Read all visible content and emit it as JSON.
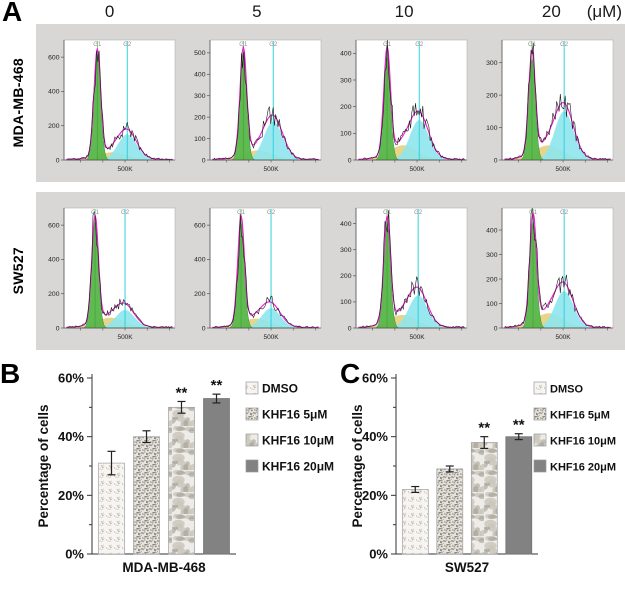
{
  "figure": {
    "panel_a_label": "A",
    "panel_b_label": "B",
    "panel_c_label": "C",
    "concentrations": [
      "0",
      "5",
      "10",
      "20"
    ],
    "concentration_unit": "(μM)"
  },
  "flow": {
    "x_axis_label": "500K",
    "g1_label": "G1",
    "g2_label": "G2",
    "colors": {
      "g1_fill": "#57b649",
      "g1_edge": "#2f7d2f",
      "g2_fill": "#8ee6ee",
      "s_fill": "#e7cf7e",
      "fit_curve": "#f01ad0",
      "g1_line": "#3aa32f",
      "g2_line": "#2fd2dd",
      "trace": "#1a1a1a",
      "panel_bg": "#d8d7d5"
    },
    "rows": [
      {
        "cell_line": "MDA-MB-468",
        "plots": [
          {
            "concentration": "0",
            "y_ticks": [
              0,
              200,
              400,
              600
            ],
            "y_max": 700,
            "g1_x": 0.3,
            "g1_h": 620,
            "g2_x": 0.57,
            "g2_h": 150,
            "s_h": 45,
            "seed": 11
          },
          {
            "concentration": "5",
            "y_ticks": [
              0,
              100,
              200,
              300,
              400,
              500
            ],
            "y_max": 560,
            "g1_x": 0.3,
            "g1_h": 500,
            "g2_x": 0.57,
            "g2_h": 180,
            "s_h": 45,
            "seed": 12
          },
          {
            "concentration": "10",
            "y_ticks": [
              0,
              100,
              200,
              300,
              400
            ],
            "y_max": 450,
            "g1_x": 0.28,
            "g1_h": 395,
            "g2_x": 0.57,
            "g2_h": 150,
            "s_h": 55,
            "seed": 13
          },
          {
            "concentration": "20",
            "y_ticks": [
              0,
              100,
              200,
              300
            ],
            "y_max": 370,
            "g1_x": 0.27,
            "g1_h": 315,
            "g2_x": 0.56,
            "g2_h": 150,
            "s_h": 45,
            "seed": 14
          }
        ]
      },
      {
        "cell_line": "SW527",
        "plots": [
          {
            "concentration": "0",
            "y_ticks": [
              0,
              200,
              400,
              600
            ],
            "y_max": 700,
            "g1_x": 0.28,
            "g1_h": 620,
            "g2_x": 0.55,
            "g2_h": 105,
            "s_h": 60,
            "seed": 21
          },
          {
            "concentration": "5",
            "y_ticks": [
              0,
              200,
              400,
              600
            ],
            "y_max": 700,
            "g1_x": 0.28,
            "g1_h": 620,
            "g2_x": 0.55,
            "g2_h": 115,
            "s_h": 55,
            "seed": 22
          },
          {
            "concentration": "10",
            "y_ticks": [
              0,
              100,
              200,
              300,
              400
            ],
            "y_max": 460,
            "g1_x": 0.28,
            "g1_h": 400,
            "g2_x": 0.56,
            "g2_h": 125,
            "s_h": 50,
            "seed": 23
          },
          {
            "concentration": "20",
            "y_ticks": [
              0,
              100,
              200,
              300,
              400
            ],
            "y_max": 490,
            "g1_x": 0.28,
            "g1_h": 435,
            "g2_x": 0.56,
            "g2_h": 150,
            "s_h": 60,
            "seed": 24
          }
        ]
      }
    ]
  },
  "chart_data": [
    {
      "type": "bar",
      "panel": "B",
      "ylabel": "Percentage of cells",
      "xlabel": "MDA-MB-468",
      "categories": [
        "DMSO",
        "KHF16 5μM",
        "KHF16 10μM",
        "KHF16 20μM"
      ],
      "values": [
        31,
        40,
        50,
        53
      ],
      "errors": [
        4,
        2,
        2,
        1.5
      ],
      "significance": [
        "",
        "",
        "**",
        "**"
      ],
      "ylim": [
        0,
        60
      ],
      "yticks": [
        0,
        20,
        40,
        60
      ],
      "ytick_labels": [
        "0%",
        "20%",
        "40%",
        "60%"
      ],
      "legend_position": "right",
      "grid": false
    },
    {
      "type": "bar",
      "panel": "C",
      "ylabel": "Percentage of cells",
      "xlabel": "SW527",
      "categories": [
        "DMSO",
        "KHF16 5μM",
        "KHF16 10μM",
        "KHF16 20μM"
      ],
      "values": [
        22,
        29,
        38,
        40
      ],
      "errors": [
        1,
        1,
        2,
        1
      ],
      "significance": [
        "",
        "",
        "**",
        "**"
      ],
      "ylim": [
        0,
        60
      ],
      "yticks": [
        0,
        20,
        40,
        60
      ],
      "ytick_labels": [
        "0%",
        "20%",
        "40%",
        "60%"
      ],
      "legend_position": "right",
      "grid": false
    }
  ],
  "legend": {
    "items": [
      {
        "label": "DMSO",
        "texture": "speckle-light"
      },
      {
        "label": "KHF16 5μM",
        "texture": "speckle-dense"
      },
      {
        "label": "KHF16 10μM",
        "texture": "marble"
      },
      {
        "label": "KHF16 20μM",
        "texture": "solid-gray",
        "color": "#828282"
      }
    ]
  }
}
